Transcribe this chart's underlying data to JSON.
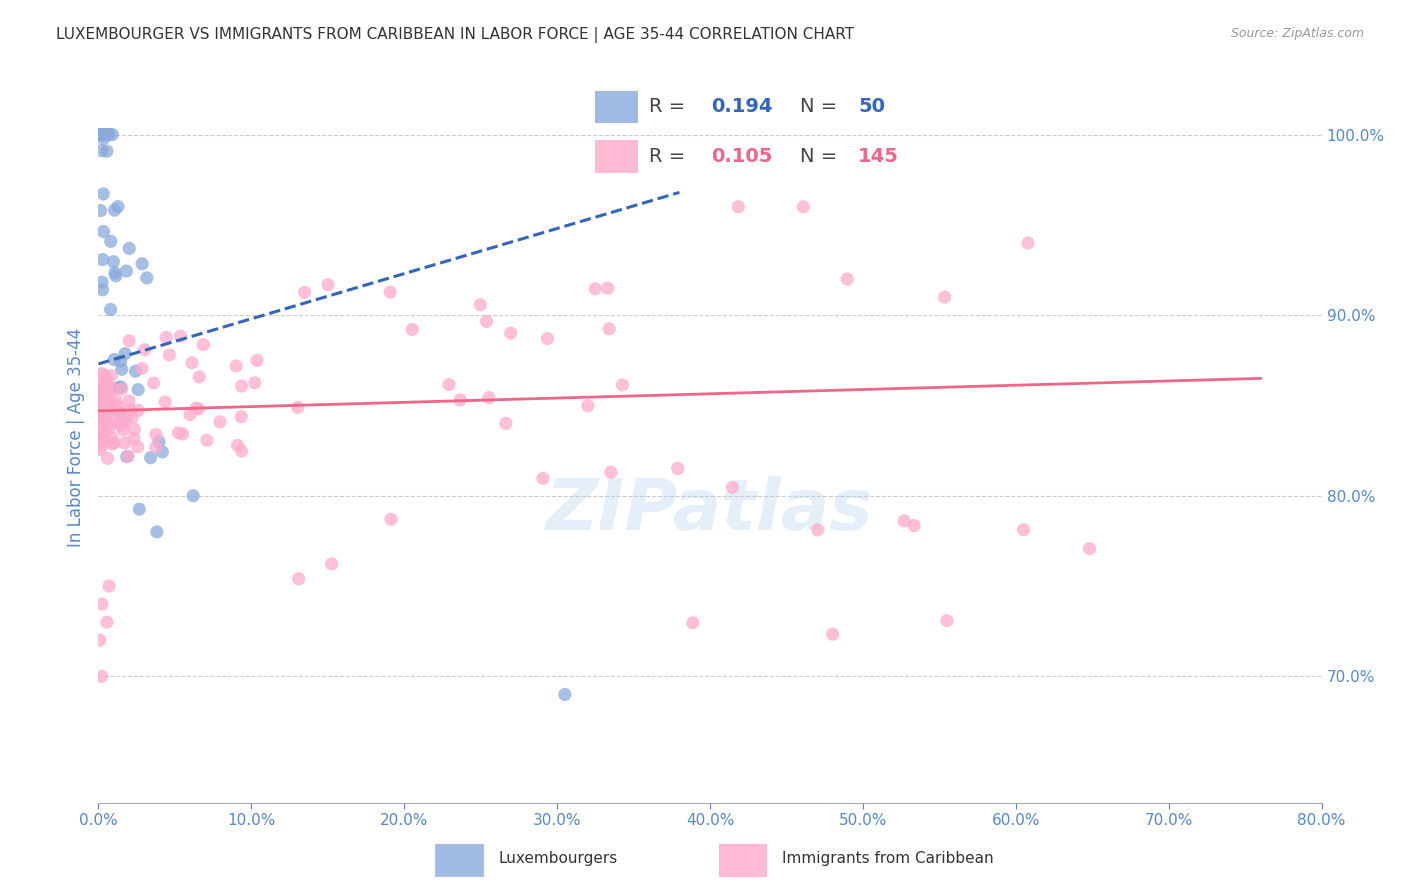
{
  "title": "LUXEMBOURGER VS IMMIGRANTS FROM CARIBBEAN IN LABOR FORCE | AGE 35-44 CORRELATION CHART",
  "source": "Source: ZipAtlas.com",
  "ylabel": "In Labor Force | Age 35-44",
  "xlim": [
    0.0,
    0.8
  ],
  "ylim": [
    0.63,
    1.035
  ],
  "yticks": [
    0.7,
    0.8,
    0.9,
    1.0
  ],
  "xticks": [
    0.0,
    0.1,
    0.2,
    0.3,
    0.4,
    0.5,
    0.6,
    0.7,
    0.8
  ],
  "blue_R": 0.194,
  "blue_N": 50,
  "pink_R": 0.105,
  "pink_N": 145,
  "blue_color": "#88AADD",
  "pink_color": "#FFAACC",
  "blue_line_color": "#3366BB",
  "pink_line_color": "#EE6688",
  "blue_trend_x0": 0.0,
  "blue_trend_x1": 0.38,
  "blue_trend_y0": 0.873,
  "blue_trend_y1": 0.968,
  "pink_trend_x0": 0.0,
  "pink_trend_x1": 0.76,
  "pink_trend_y0": 0.847,
  "pink_trend_y1": 0.865,
  "watermark": "ZIPatlas",
  "watermark_color": "#AACCEE",
  "background_color": "#FFFFFF",
  "title_color": "#333333",
  "axis_label_color": "#5588CC",
  "tick_color": "#5588CC",
  "grid_color": "#CCCCCC",
  "legend_r_color": "#3366BB",
  "legend_n_color_blue": "#3366BB",
  "legend_r2_color": "#EE6688",
  "legend_n_color_pink": "#EE6688",
  "title_fontsize": 11,
  "axis_fontsize": 12,
  "tick_fontsize": 11
}
